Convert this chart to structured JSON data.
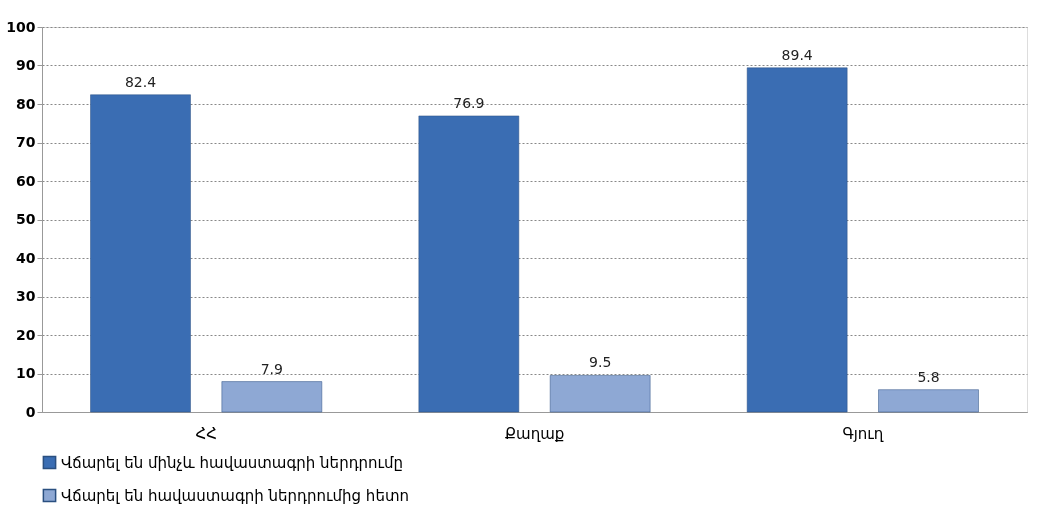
{
  "chart_data": {
    "type": "bar",
    "categories": [
      "ՀՀ",
      "Քաղաք",
      "Գյուղ"
    ],
    "series": [
      {
        "name": "Վճարել են մինչև հավաստագրի ներդրումը",
        "color": "#3a6db3",
        "values": [
          82.4,
          76.9,
          89.4
        ]
      },
      {
        "name": "Վճարել են  հավաստագրի ներդրումից հետո",
        "color": "#8ea8d4",
        "values": [
          7.9,
          9.5,
          5.8
        ]
      }
    ],
    "ylim": [
      0,
      100
    ],
    "yticks": [
      0,
      10,
      20,
      30,
      40,
      50,
      60,
      70,
      80,
      90,
      100
    ],
    "grid": "y",
    "legend": "bottom",
    "data_labels": true
  }
}
